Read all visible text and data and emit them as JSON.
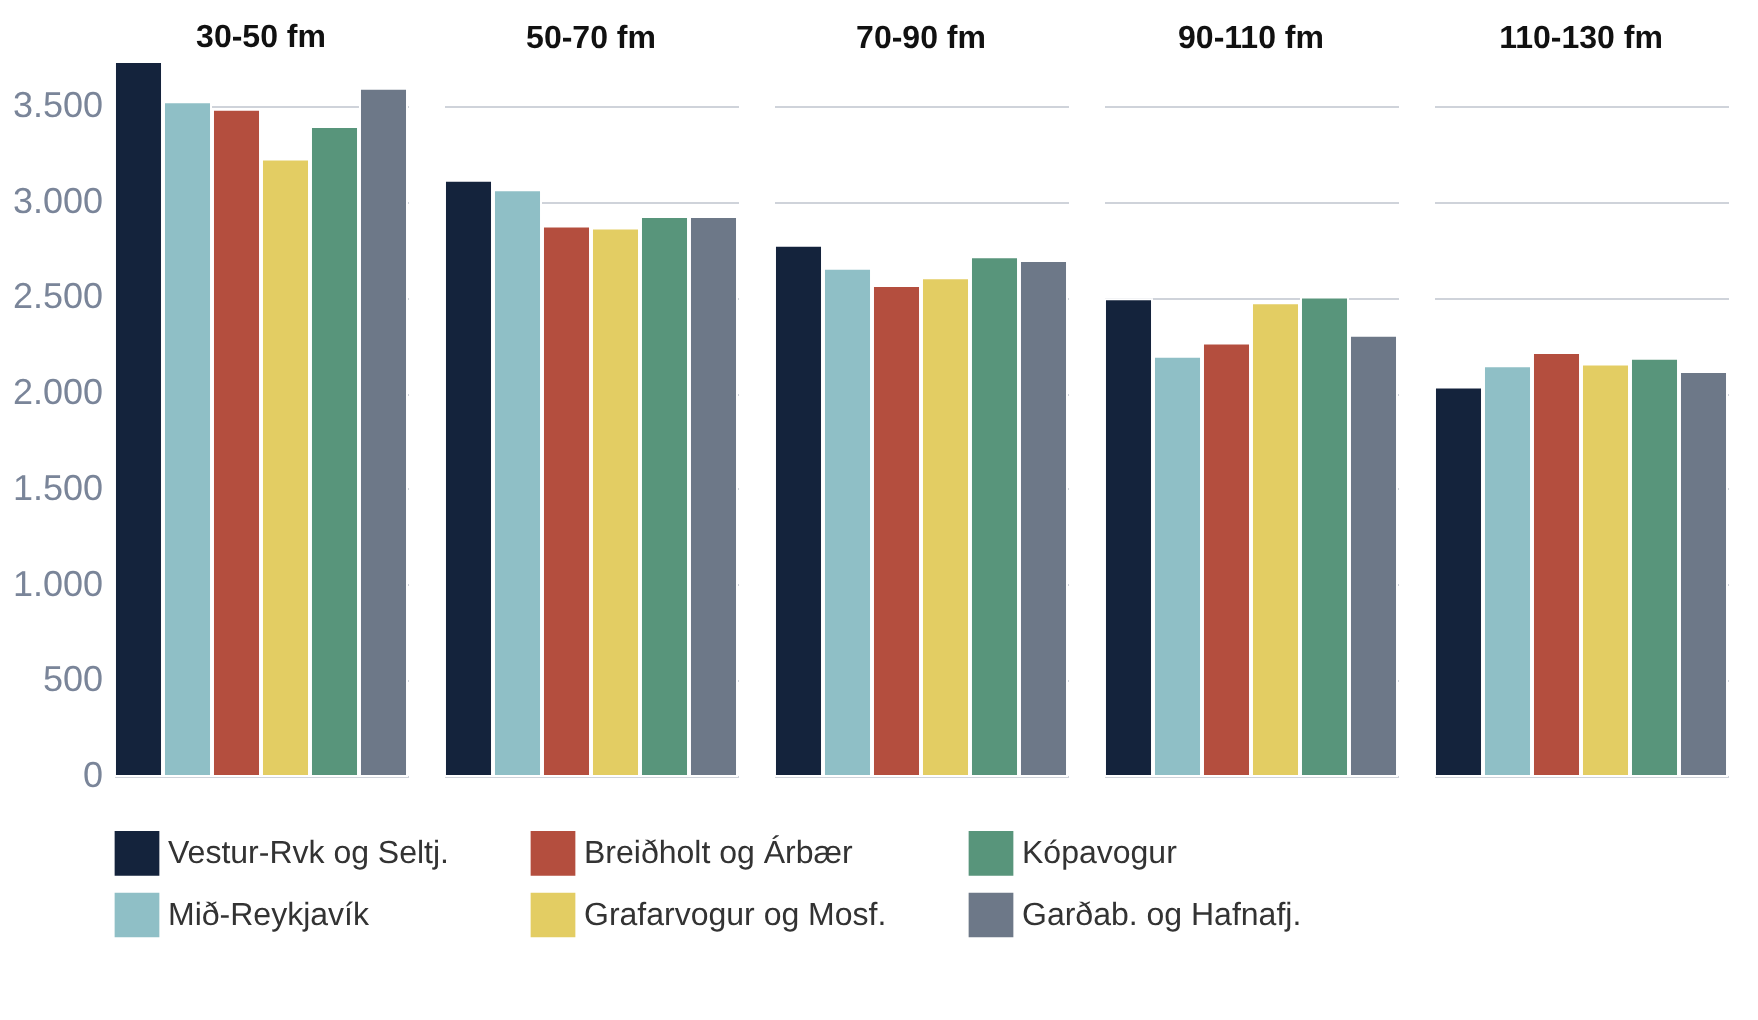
{
  "chart_data": {
    "type": "bar",
    "categories": [
      "30-50 fm",
      "50-70 fm",
      "70-90 fm",
      "90-110 fm",
      "110-130 fm"
    ],
    "series": [
      {
        "name": "Vestur-Rvk og Seltj.",
        "color": "#14233c",
        "values": [
          3730,
          3110,
          2770,
          2490,
          2030
        ]
      },
      {
        "name": "Mið-Reykjavík",
        "color": "#8fbfc6",
        "values": [
          3520,
          3060,
          2650,
          2190,
          2140
        ]
      },
      {
        "name": "Breiðholt og Árbær",
        "color": "#b44e3e",
        "values": [
          3480,
          2870,
          2560,
          2260,
          2210
        ]
      },
      {
        "name": "Grafarvogur og Mosf.",
        "color": "#e3cd63",
        "values": [
          3220,
          2860,
          2600,
          2470,
          2150
        ]
      },
      {
        "name": "Kópavogur",
        "color": "#58957b",
        "values": [
          3390,
          2920,
          2710,
          2500,
          2180
        ]
      },
      {
        "name": "Garðab. og Hafnafj.",
        "color": "#6d7888",
        "values": [
          3590,
          2920,
          2690,
          2300,
          2110
        ]
      }
    ],
    "ylim": [
      0,
      3730
    ],
    "yticks": [
      0,
      500,
      {
        "value": 1000,
        "label": "1.000"
      },
      {
        "value": 1500,
        "label": "1.500"
      },
      {
        "value": 2000,
        "label": "2.000"
      },
      {
        "value": 2500,
        "label": "2.500"
      },
      {
        "value": 3000,
        "label": "3.000"
      },
      {
        "value": 3500,
        "label": "3.500"
      }
    ],
    "grid": "y",
    "legend": "bottom"
  }
}
